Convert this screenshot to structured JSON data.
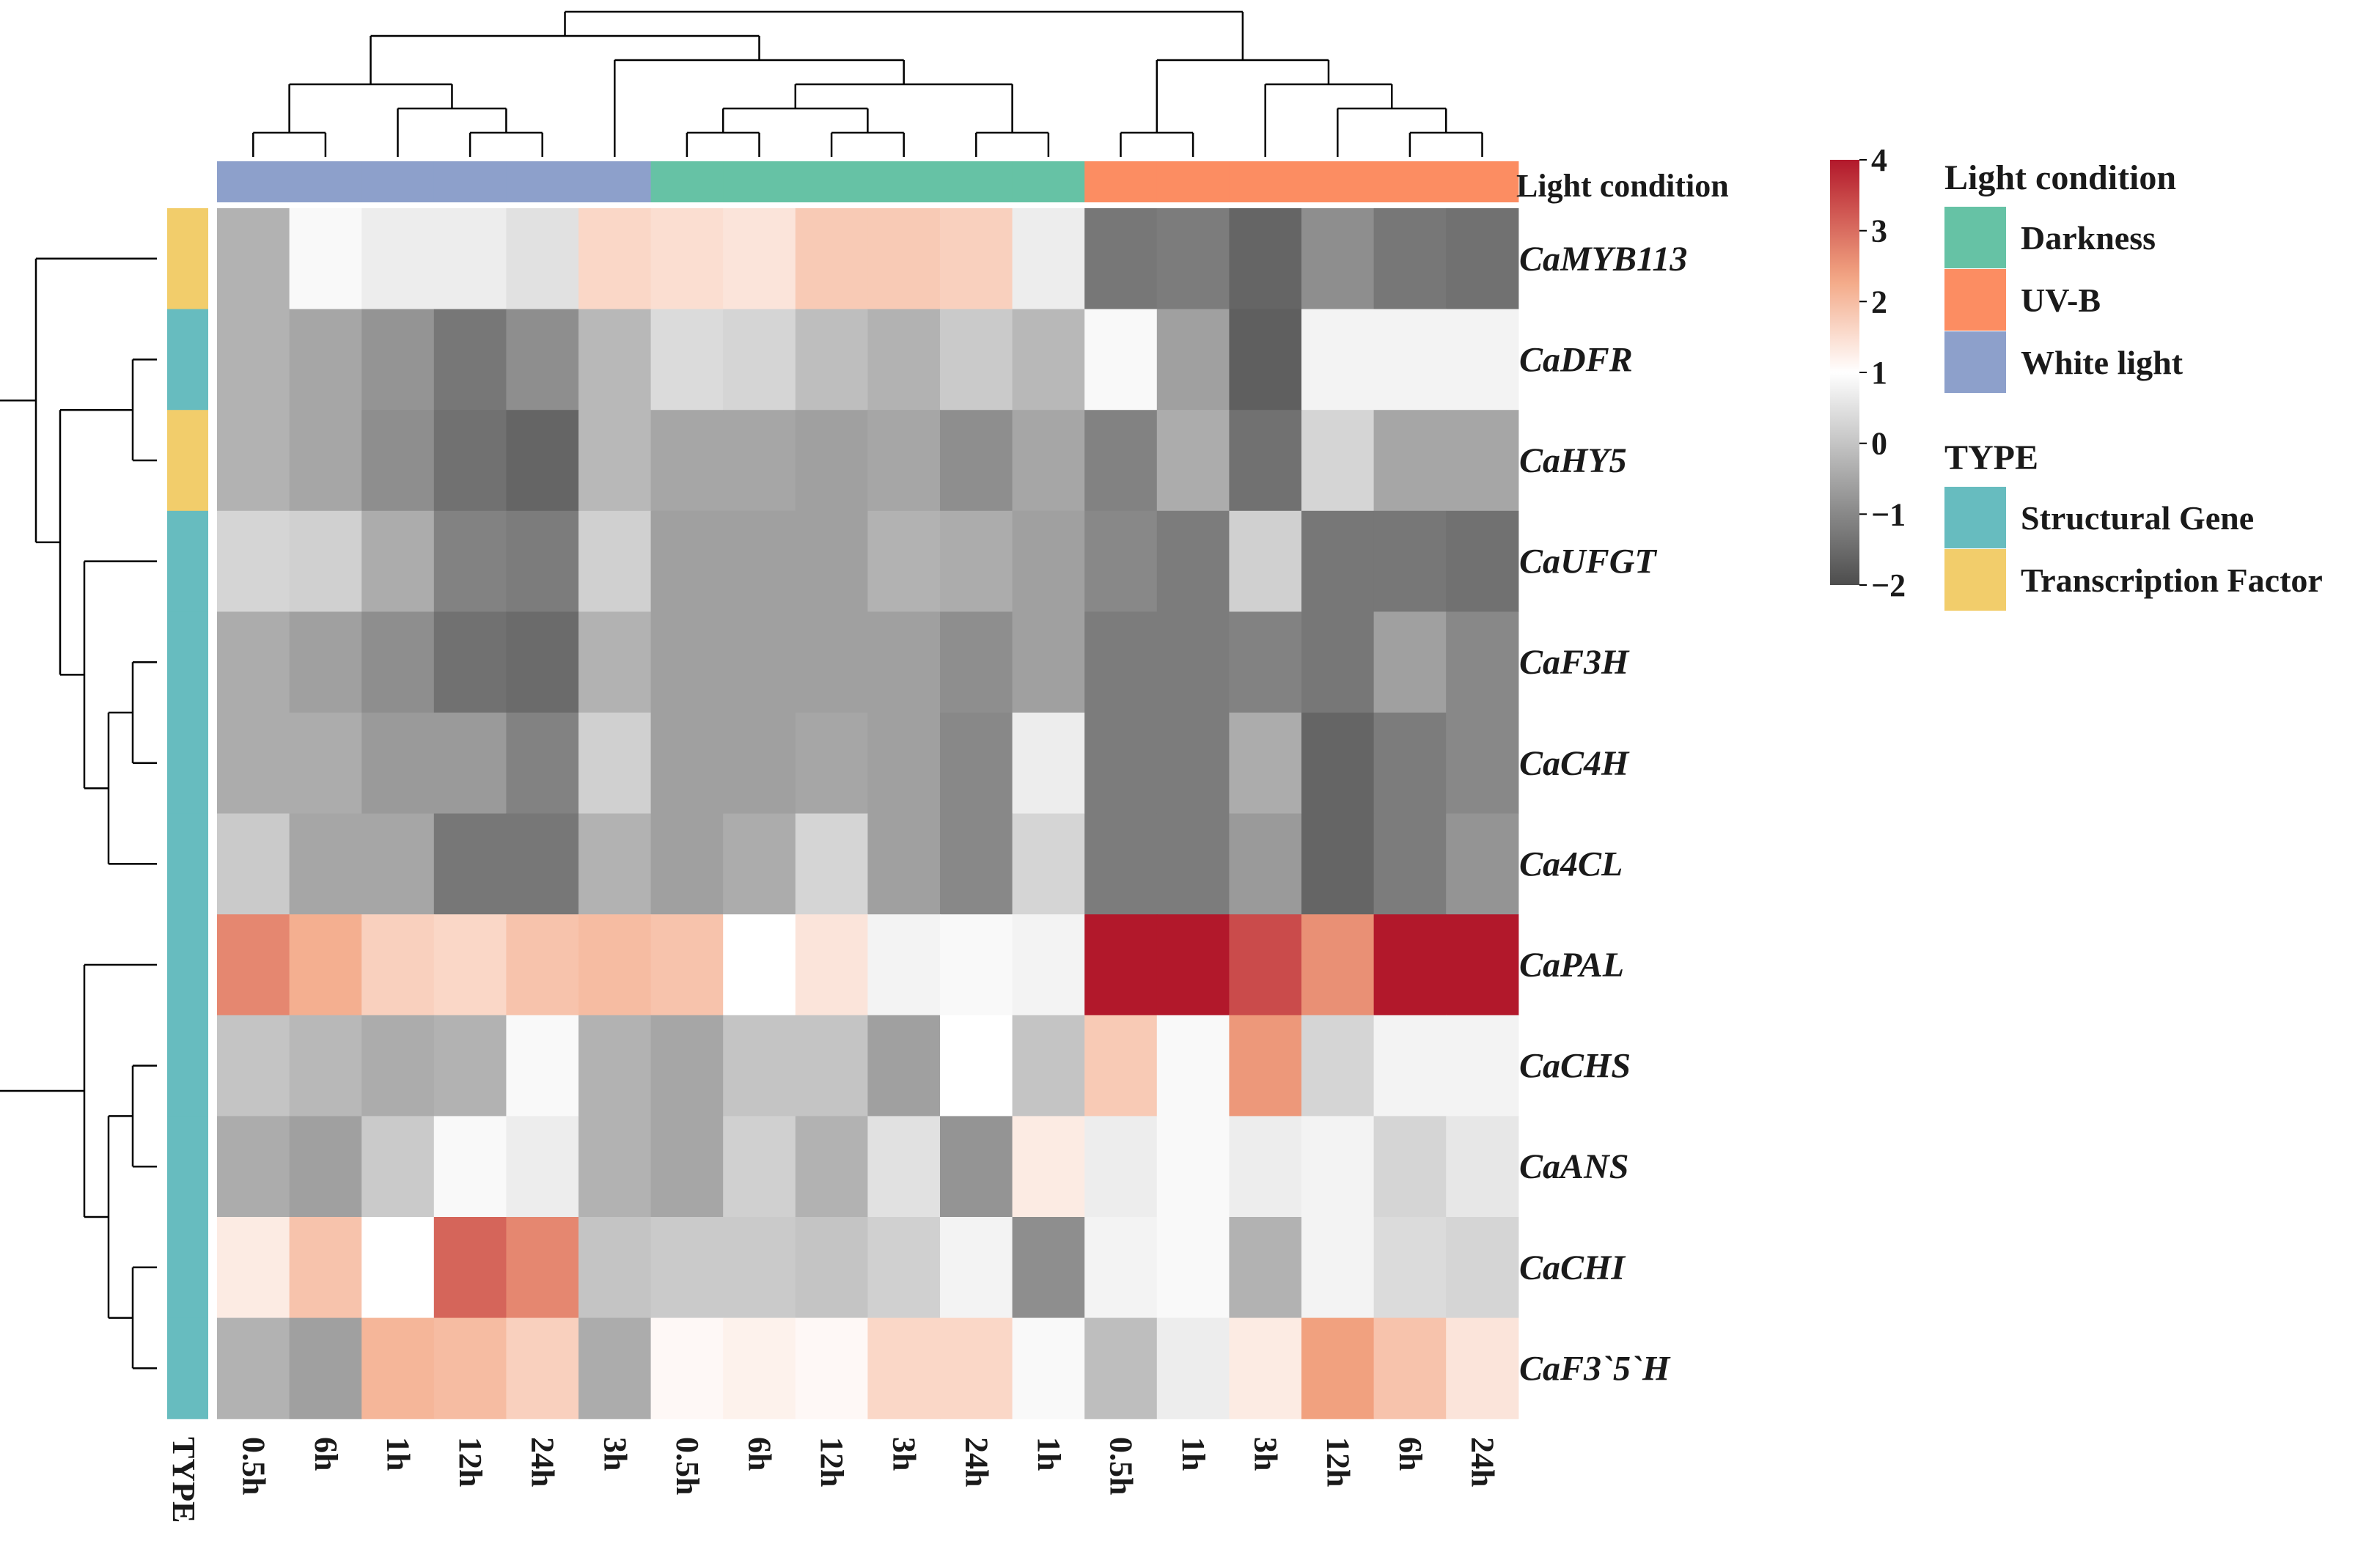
{
  "chart_data": {
    "type": "heatmap",
    "rows": [
      "CaMYB113",
      "CaDFR",
      "CaHY5",
      "CaUFGT",
      "CaF3H",
      "CaC4H",
      "Ca4CL",
      "CaPAL",
      "CaCHS",
      "CaANS",
      "CaCHI",
      "CaF3`5`H"
    ],
    "columns": [
      "0.5h",
      "6h",
      "1h",
      "12h",
      "24h",
      "3h",
      "0.5h",
      "6h",
      "12h",
      "3h",
      "24h",
      "1h",
      "0.5h",
      "1h",
      "3h",
      "12h",
      "6h",
      "24h"
    ],
    "column_groups": [
      "White light",
      "White light",
      "White light",
      "White light",
      "White light",
      "White light",
      "Darkness",
      "Darkness",
      "Darkness",
      "Darkness",
      "Darkness",
      "Darkness",
      "UV-B",
      "UV-B",
      "UV-B",
      "UV-B",
      "UV-B",
      "UV-B"
    ],
    "row_types": [
      "Transcription Factor",
      "Structural Gene",
      "Transcription Factor",
      "Structural Gene",
      "Structural Gene",
      "Structural Gene",
      "Structural Gene",
      "Structural Gene",
      "Structural Gene",
      "Structural Gene",
      "Structural Gene",
      "Structural Gene"
    ],
    "values": [
      [
        -0.3,
        0.9,
        0.7,
        0.7,
        0.5,
        1.6,
        1.5,
        1.4,
        1.8,
        1.8,
        1.7,
        0.7,
        -1.3,
        -1.2,
        -1.6,
        -0.9,
        -1.3,
        -1.4
      ],
      [
        -0.3,
        -0.5,
        -0.8,
        -1.3,
        -0.9,
        -0.2,
        0.4,
        0.3,
        -0.1,
        -0.3,
        0.1,
        -0.2,
        0.9,
        -0.6,
        -1.7,
        0.8,
        0.8,
        0.8
      ],
      [
        -0.3,
        -0.5,
        -0.9,
        -1.4,
        -1.6,
        -0.2,
        -0.5,
        -0.5,
        -0.6,
        -0.5,
        -0.9,
        -0.5,
        -1.1,
        -0.4,
        -1.4,
        0.3,
        -0.5,
        -0.5
      ],
      [
        0.3,
        0.2,
        -0.4,
        -1.1,
        -1.2,
        0.2,
        -0.6,
        -0.6,
        -0.6,
        -0.3,
        -0.4,
        -0.6,
        -1.0,
        -1.2,
        0.2,
        -1.3,
        -1.3,
        -1.4
      ],
      [
        -0.4,
        -0.6,
        -0.9,
        -1.4,
        -1.5,
        -0.3,
        -0.6,
        -0.6,
        -0.6,
        -0.6,
        -0.9,
        -0.6,
        -1.2,
        -1.2,
        -1.1,
        -1.3,
        -0.6,
        -1.0
      ],
      [
        -0.4,
        -0.4,
        -0.7,
        -0.7,
        -1.1,
        0.2,
        -0.6,
        -0.6,
        -0.5,
        -0.6,
        -1.0,
        0.7,
        -1.2,
        -1.2,
        -0.4,
        -1.6,
        -1.2,
        -1.0
      ],
      [
        0.1,
        -0.5,
        -0.5,
        -1.3,
        -1.3,
        -0.3,
        -0.6,
        -0.4,
        0.3,
        -0.6,
        -1.0,
        0.3,
        -1.2,
        -1.2,
        -0.7,
        -1.6,
        -1.2,
        -0.8
      ],
      [
        2.7,
        2.2,
        1.7,
        1.6,
        1.9,
        2.0,
        1.9,
        1.0,
        1.4,
        0.8,
        0.9,
        0.8,
        4.0,
        4.4,
        3.4,
        2.6,
        4.0,
        4.3
      ],
      [
        0.0,
        -0.2,
        -0.4,
        -0.3,
        0.9,
        -0.3,
        -0.5,
        0.0,
        0.0,
        -0.6,
        1.0,
        0.0,
        1.8,
        0.9,
        2.5,
        0.3,
        0.8,
        0.8
      ],
      [
        -0.4,
        -0.6,
        0.1,
        0.9,
        0.7,
        -0.3,
        -0.5,
        0.2,
        -0.3,
        0.5,
        -0.8,
        1.3,
        0.7,
        0.9,
        0.7,
        0.8,
        0.3,
        0.6
      ],
      [
        1.3,
        1.9,
        1.0,
        3.1,
        2.7,
        0.0,
        0.1,
        0.1,
        0.0,
        0.2,
        0.8,
        -0.9,
        0.8,
        0.9,
        -0.3,
        0.8,
        0.4,
        0.3
      ],
      [
        -0.3,
        -0.6,
        2.1,
        2.0,
        1.7,
        -0.4,
        1.1,
        1.2,
        1.1,
        1.6,
        1.6,
        0.9,
        -0.1,
        0.7,
        1.3,
        2.4,
        1.9,
        1.4
      ]
    ],
    "colorbar": {
      "min": -2,
      "max": 4,
      "ticks": [
        4,
        3,
        2,
        1,
        0,
        -1,
        -2
      ]
    },
    "colors": {
      "low": "#4d4d4d",
      "mid": "#ffffff",
      "high": "#b2182b",
      "Darkness": "#66c2a5",
      "UV-B": "#fc8d62",
      "White light": "#8da0cb",
      "Structural Gene": "#67bcbf",
      "Transcription Factor": "#f2cd6b"
    }
  },
  "annotations": {
    "col_annotation_label": "Light condition",
    "row_annotation_label": "TYPE"
  },
  "legend": {
    "light_title": "Light condition",
    "light_items": [
      "Darkness",
      "UV-B",
      "White light"
    ],
    "type_title": "TYPE",
    "type_items": [
      "Structural Gene",
      "Transcription Factor"
    ]
  }
}
